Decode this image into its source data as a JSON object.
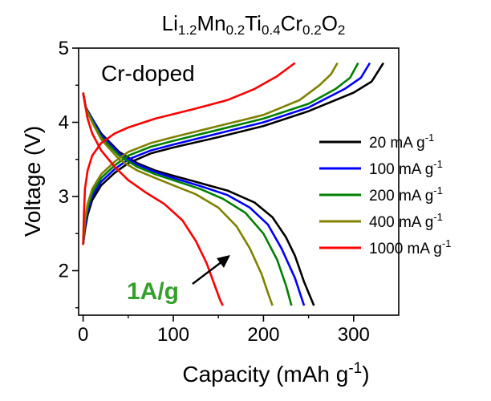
{
  "chart_data": {
    "type": "line",
    "title_parts": [
      {
        "text": "Li",
        "sub": false
      },
      {
        "text": "1.2",
        "sub": true
      },
      {
        "text": "Mn",
        "sub": false
      },
      {
        "text": "0.2",
        "sub": true
      },
      {
        "text": "Ti",
        "sub": false
      },
      {
        "text": "0.4",
        "sub": true
      },
      {
        "text": "Cr",
        "sub": false
      },
      {
        "text": "0.2",
        "sub": true
      },
      {
        "text": "O",
        "sub": false
      },
      {
        "text": "2",
        "sub": true
      }
    ],
    "xlabel": "Capacity (mAh g",
    "xlabel_sup": "-1",
    "xlabel_tail": ")",
    "ylabel": "Voltage (V)",
    "xlim": [
      -5,
      350
    ],
    "ylim": [
      1.4,
      5.0
    ],
    "xticks": [
      0,
      100,
      200,
      300
    ],
    "yticks": [
      2,
      3,
      4,
      5
    ],
    "grid": false,
    "legend_position": "right",
    "annotations": {
      "inset_label": "Cr-doped",
      "rate_label": "1A/g",
      "rate_label_color": "#33a02c"
    },
    "series": [
      {
        "name": "20 mA g",
        "name_sup": "-1",
        "color": "#000000",
        "charge": [
          [
            0,
            2.35
          ],
          [
            2,
            2.55
          ],
          [
            5,
            2.75
          ],
          [
            10,
            2.95
          ],
          [
            20,
            3.15
          ],
          [
            35,
            3.32
          ],
          [
            50,
            3.45
          ],
          [
            75,
            3.58
          ],
          [
            100,
            3.66
          ],
          [
            150,
            3.8
          ],
          [
            200,
            3.95
          ],
          [
            250,
            4.15
          ],
          [
            300,
            4.4
          ],
          [
            320,
            4.55
          ],
          [
            333,
            4.8
          ]
        ],
        "discharge": [
          [
            0,
            4.4
          ],
          [
            3,
            4.2
          ],
          [
            10,
            4.05
          ],
          [
            20,
            3.85
          ],
          [
            40,
            3.6
          ],
          [
            60,
            3.45
          ],
          [
            80,
            3.35
          ],
          [
            100,
            3.28
          ],
          [
            130,
            3.18
          ],
          [
            160,
            3.08
          ],
          [
            190,
            2.92
          ],
          [
            210,
            2.72
          ],
          [
            225,
            2.45
          ],
          [
            235,
            2.2
          ],
          [
            245,
            1.85
          ],
          [
            256,
            1.53
          ]
        ]
      },
      {
        "name": "100 mA g",
        "name_sup": "-1",
        "color": "#0000ff",
        "charge": [
          [
            0,
            2.35
          ],
          [
            2,
            2.6
          ],
          [
            5,
            2.8
          ],
          [
            10,
            3.0
          ],
          [
            20,
            3.2
          ],
          [
            35,
            3.37
          ],
          [
            50,
            3.5
          ],
          [
            75,
            3.62
          ],
          [
            100,
            3.7
          ],
          [
            150,
            3.85
          ],
          [
            200,
            4.0
          ],
          [
            250,
            4.2
          ],
          [
            290,
            4.45
          ],
          [
            308,
            4.6
          ],
          [
            318,
            4.8
          ]
        ],
        "discharge": [
          [
            0,
            4.4
          ],
          [
            3,
            4.2
          ],
          [
            10,
            4.05
          ],
          [
            20,
            3.83
          ],
          [
            40,
            3.58
          ],
          [
            60,
            3.43
          ],
          [
            80,
            3.33
          ],
          [
            100,
            3.25
          ],
          [
            130,
            3.14
          ],
          [
            160,
            3.02
          ],
          [
            185,
            2.85
          ],
          [
            205,
            2.62
          ],
          [
            220,
            2.3
          ],
          [
            235,
            1.9
          ],
          [
            245,
            1.53
          ]
        ]
      },
      {
        "name": "200 mA g",
        "name_sup": "-1",
        "color": "#008000",
        "charge": [
          [
            0,
            2.35
          ],
          [
            2,
            2.65
          ],
          [
            5,
            2.85
          ],
          [
            10,
            3.05
          ],
          [
            20,
            3.25
          ],
          [
            35,
            3.42
          ],
          [
            50,
            3.55
          ],
          [
            75,
            3.67
          ],
          [
            100,
            3.75
          ],
          [
            150,
            3.9
          ],
          [
            200,
            4.05
          ],
          [
            250,
            4.25
          ],
          [
            280,
            4.45
          ],
          [
            296,
            4.6
          ],
          [
            305,
            4.8
          ]
        ],
        "discharge": [
          [
            0,
            4.4
          ],
          [
            3,
            4.2
          ],
          [
            10,
            4.02
          ],
          [
            20,
            3.8
          ],
          [
            40,
            3.55
          ],
          [
            60,
            3.4
          ],
          [
            80,
            3.3
          ],
          [
            100,
            3.22
          ],
          [
            130,
            3.1
          ],
          [
            155,
            2.97
          ],
          [
            180,
            2.78
          ],
          [
            200,
            2.5
          ],
          [
            215,
            2.15
          ],
          [
            225,
            1.8
          ],
          [
            231,
            1.53
          ]
        ]
      },
      {
        "name": "400 mA g",
        "name_sup": "-1",
        "color": "#808000",
        "charge": [
          [
            0,
            2.35
          ],
          [
            2,
            2.7
          ],
          [
            5,
            2.9
          ],
          [
            10,
            3.1
          ],
          [
            20,
            3.3
          ],
          [
            35,
            3.47
          ],
          [
            50,
            3.6
          ],
          [
            75,
            3.72
          ],
          [
            100,
            3.8
          ],
          [
            150,
            3.95
          ],
          [
            200,
            4.1
          ],
          [
            240,
            4.3
          ],
          [
            262,
            4.5
          ],
          [
            275,
            4.65
          ],
          [
            282,
            4.8
          ]
        ],
        "discharge": [
          [
            0,
            4.4
          ],
          [
            3,
            4.18
          ],
          [
            10,
            4.0
          ],
          [
            20,
            3.77
          ],
          [
            40,
            3.5
          ],
          [
            60,
            3.35
          ],
          [
            80,
            3.25
          ],
          [
            100,
            3.15
          ],
          [
            125,
            3.03
          ],
          [
            150,
            2.85
          ],
          [
            170,
            2.6
          ],
          [
            185,
            2.3
          ],
          [
            198,
            1.95
          ],
          [
            205,
            1.7
          ],
          [
            210,
            1.53
          ]
        ]
      },
      {
        "name": "1000 mA g",
        "name_sup": "-1",
        "color": "#ff0000",
        "charge": [
          [
            0,
            2.35
          ],
          [
            1,
            2.8
          ],
          [
            2,
            3.1
          ],
          [
            5,
            3.35
          ],
          [
            10,
            3.55
          ],
          [
            20,
            3.72
          ],
          [
            35,
            3.85
          ],
          [
            50,
            3.93
          ],
          [
            80,
            4.05
          ],
          [
            120,
            4.17
          ],
          [
            160,
            4.3
          ],
          [
            190,
            4.45
          ],
          [
            215,
            4.62
          ],
          [
            235,
            4.8
          ]
        ],
        "discharge": [
          [
            0,
            4.4
          ],
          [
            2,
            4.25
          ],
          [
            5,
            4.05
          ],
          [
            10,
            3.85
          ],
          [
            20,
            3.62
          ],
          [
            35,
            3.4
          ],
          [
            50,
            3.22
          ],
          [
            70,
            3.05
          ],
          [
            90,
            2.9
          ],
          [
            110,
            2.68
          ],
          [
            125,
            2.4
          ],
          [
            137,
            2.1
          ],
          [
            146,
            1.8
          ],
          [
            152,
            1.6
          ],
          [
            155,
            1.53
          ]
        ]
      }
    ]
  }
}
